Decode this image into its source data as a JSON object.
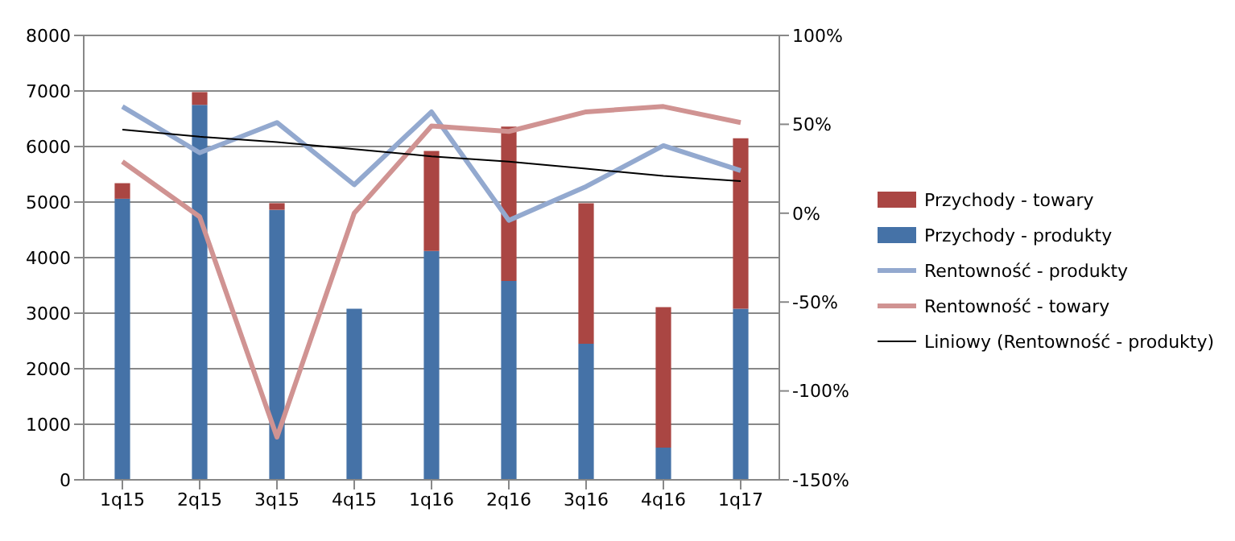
{
  "chart_data": {
    "type": "bar",
    "categories": [
      "1q15",
      "2q15",
      "3q15",
      "4q15",
      "1q16",
      "2q16",
      "3q16",
      "4q16",
      "1q17"
    ],
    "stacked": true,
    "series": [
      {
        "name": "Przychody - produkty",
        "color": "#4572a7",
        "values": [
          5060,
          6750,
          4860,
          3080,
          4120,
          3580,
          2450,
          580,
          3080
        ]
      },
      {
        "name": "Przychody - towary",
        "color": "#aa4643",
        "values": [
          280,
          230,
          120,
          0,
          1800,
          2780,
          2530,
          2530,
          3070
        ]
      },
      {
        "name": "Rentowność - produkty",
        "type": "line",
        "axis": "y2",
        "color": "#93a9cf",
        "values": [
          60,
          34,
          51,
          16,
          57,
          -4,
          15,
          38,
          24
        ]
      },
      {
        "name": "Rentowność - towary",
        "type": "line",
        "axis": "y2",
        "color": "#d09392",
        "values": [
          29,
          -2,
          -126,
          0,
          49,
          46,
          57,
          60,
          51
        ]
      },
      {
        "name": "Liniowy (Rentowność - produkty)",
        "type": "line",
        "axis": "y2",
        "color": "#000000",
        "values": [
          47,
          43,
          40,
          36,
          32,
          29,
          25,
          21,
          18
        ]
      }
    ],
    "ylim": [
      0,
      8000
    ],
    "yticks": [
      0,
      1000,
      2000,
      3000,
      4000,
      5000,
      6000,
      7000,
      8000
    ],
    "y2lim": [
      -150,
      100
    ],
    "y2ticks": [
      {
        "value": -150,
        "label": "-150%"
      },
      {
        "value": -100,
        "label": "-100%"
      },
      {
        "value": -50,
        "label": "-50%"
      },
      {
        "value": 0,
        "label": "0%"
      },
      {
        "value": 50,
        "label": "50%"
      },
      {
        "value": 100,
        "label": "100%"
      }
    ],
    "grid": "y",
    "legend": "right",
    "marker": "none",
    "line_style": "solid"
  }
}
